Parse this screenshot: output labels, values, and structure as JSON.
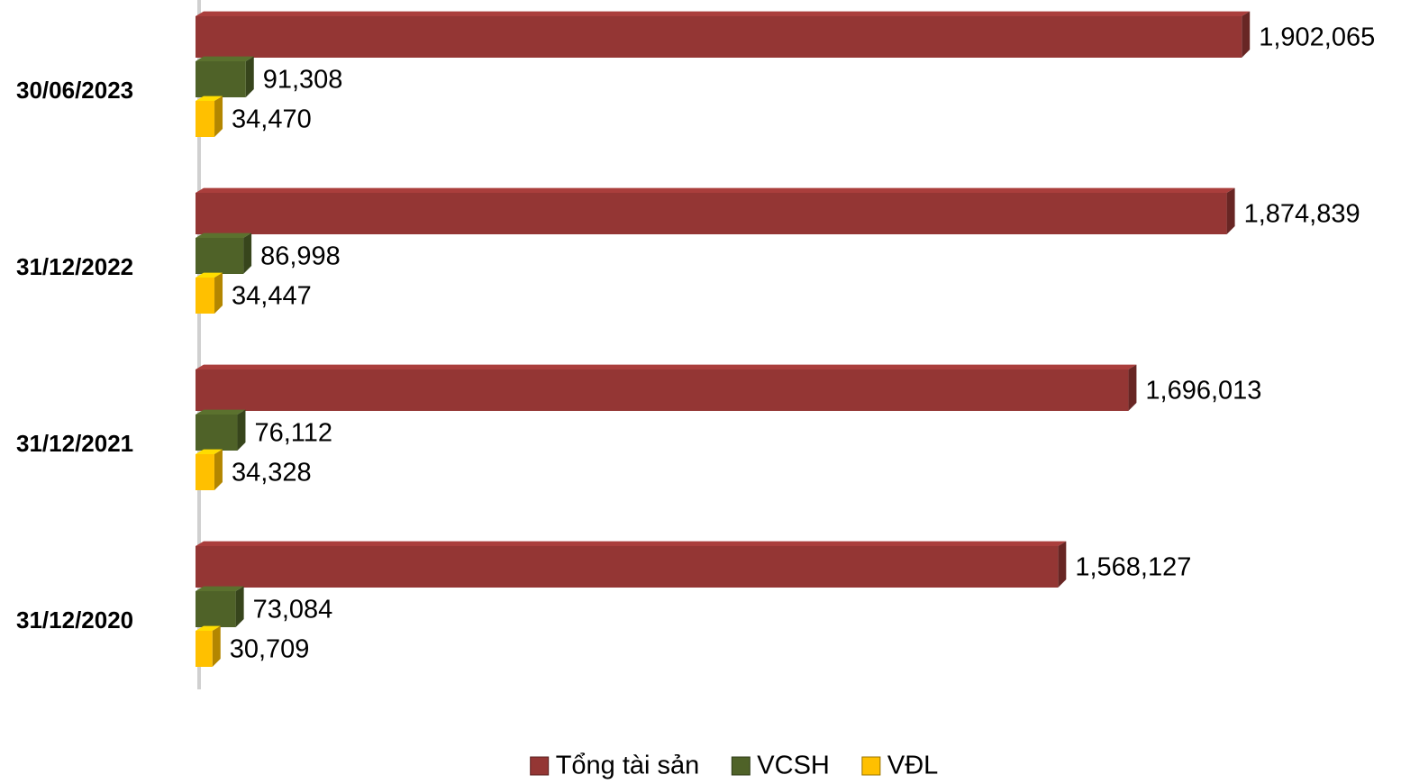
{
  "chart_data": {
    "type": "bar",
    "orientation": "horizontal",
    "categories": [
      "30/06/2023",
      "31/12/2022",
      "31/12/2021",
      "31/12/2020"
    ],
    "series": [
      {
        "name": "Tổng tài sản",
        "color": "#943634",
        "values": [
          1902065,
          1874839,
          1696013,
          1568127
        ],
        "value_labels": [
          "1,902,065",
          "1,874,839",
          "1,696,013",
          "1,568,127"
        ]
      },
      {
        "name": "VCSH",
        "color": "#4f6228",
        "values": [
          91308,
          86998,
          76112,
          73084
        ],
        "value_labels": [
          "91,308",
          "86,998",
          "76,112",
          "73,084"
        ]
      },
      {
        "name": "VĐL",
        "color": "#ffc000",
        "values": [
          34470,
          34447,
          34328,
          30709
        ],
        "value_labels": [
          "34,470",
          "34,447",
          "34,328",
          "30,709"
        ]
      }
    ],
    "xlim": [
      0,
      2000000
    ],
    "legend": "bottom"
  }
}
